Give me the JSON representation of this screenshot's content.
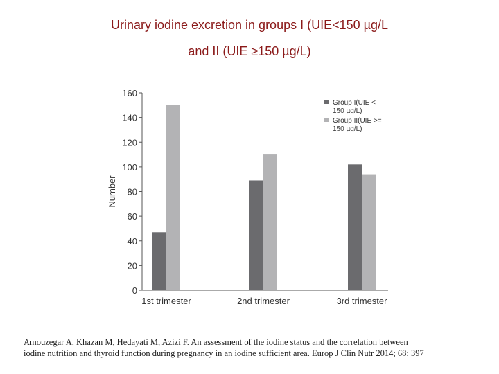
{
  "slide": {
    "title_line_1": "Urinary iodine excretion in groups I (UIE<150 µg/L",
    "title_line_2": "and II (UIE ≥150 µg/L)",
    "citation_line_1": "Amouzegar A, Khazan M, Hedayati M, Azizi F. An assessment of the iodine status and the correlation between",
    "citation_line_2": "iodine nutrition and thyroid function during pregnancy in an iodine sufficient area. Europ J Clin Nutr 2014; 68: 397"
  },
  "chart_data": {
    "type": "bar",
    "title": "",
    "xlabel": "",
    "ylabel": "Number",
    "ylim": [
      0,
      160
    ],
    "yticks": [
      0,
      20,
      40,
      60,
      80,
      100,
      120,
      140,
      160
    ],
    "categories": [
      "1st trimester",
      "2nd trimester",
      "3rd trimester"
    ],
    "series": [
      {
        "name": "Group I(UIE < 150 µg/L)",
        "legend_lines": [
          "Group I(UIE <",
          "150 µg/L)"
        ],
        "color": "#6b6b6e",
        "values": [
          47,
          89,
          102
        ]
      },
      {
        "name": "Group II(UIE >= 150 µg/L)",
        "legend_lines": [
          "Group II(UIE >=",
          "150 µg/L)"
        ],
        "color": "#b3b3b5",
        "values": [
          150,
          110,
          94
        ]
      }
    ],
    "grid": false,
    "legend_position": "top-right"
  }
}
